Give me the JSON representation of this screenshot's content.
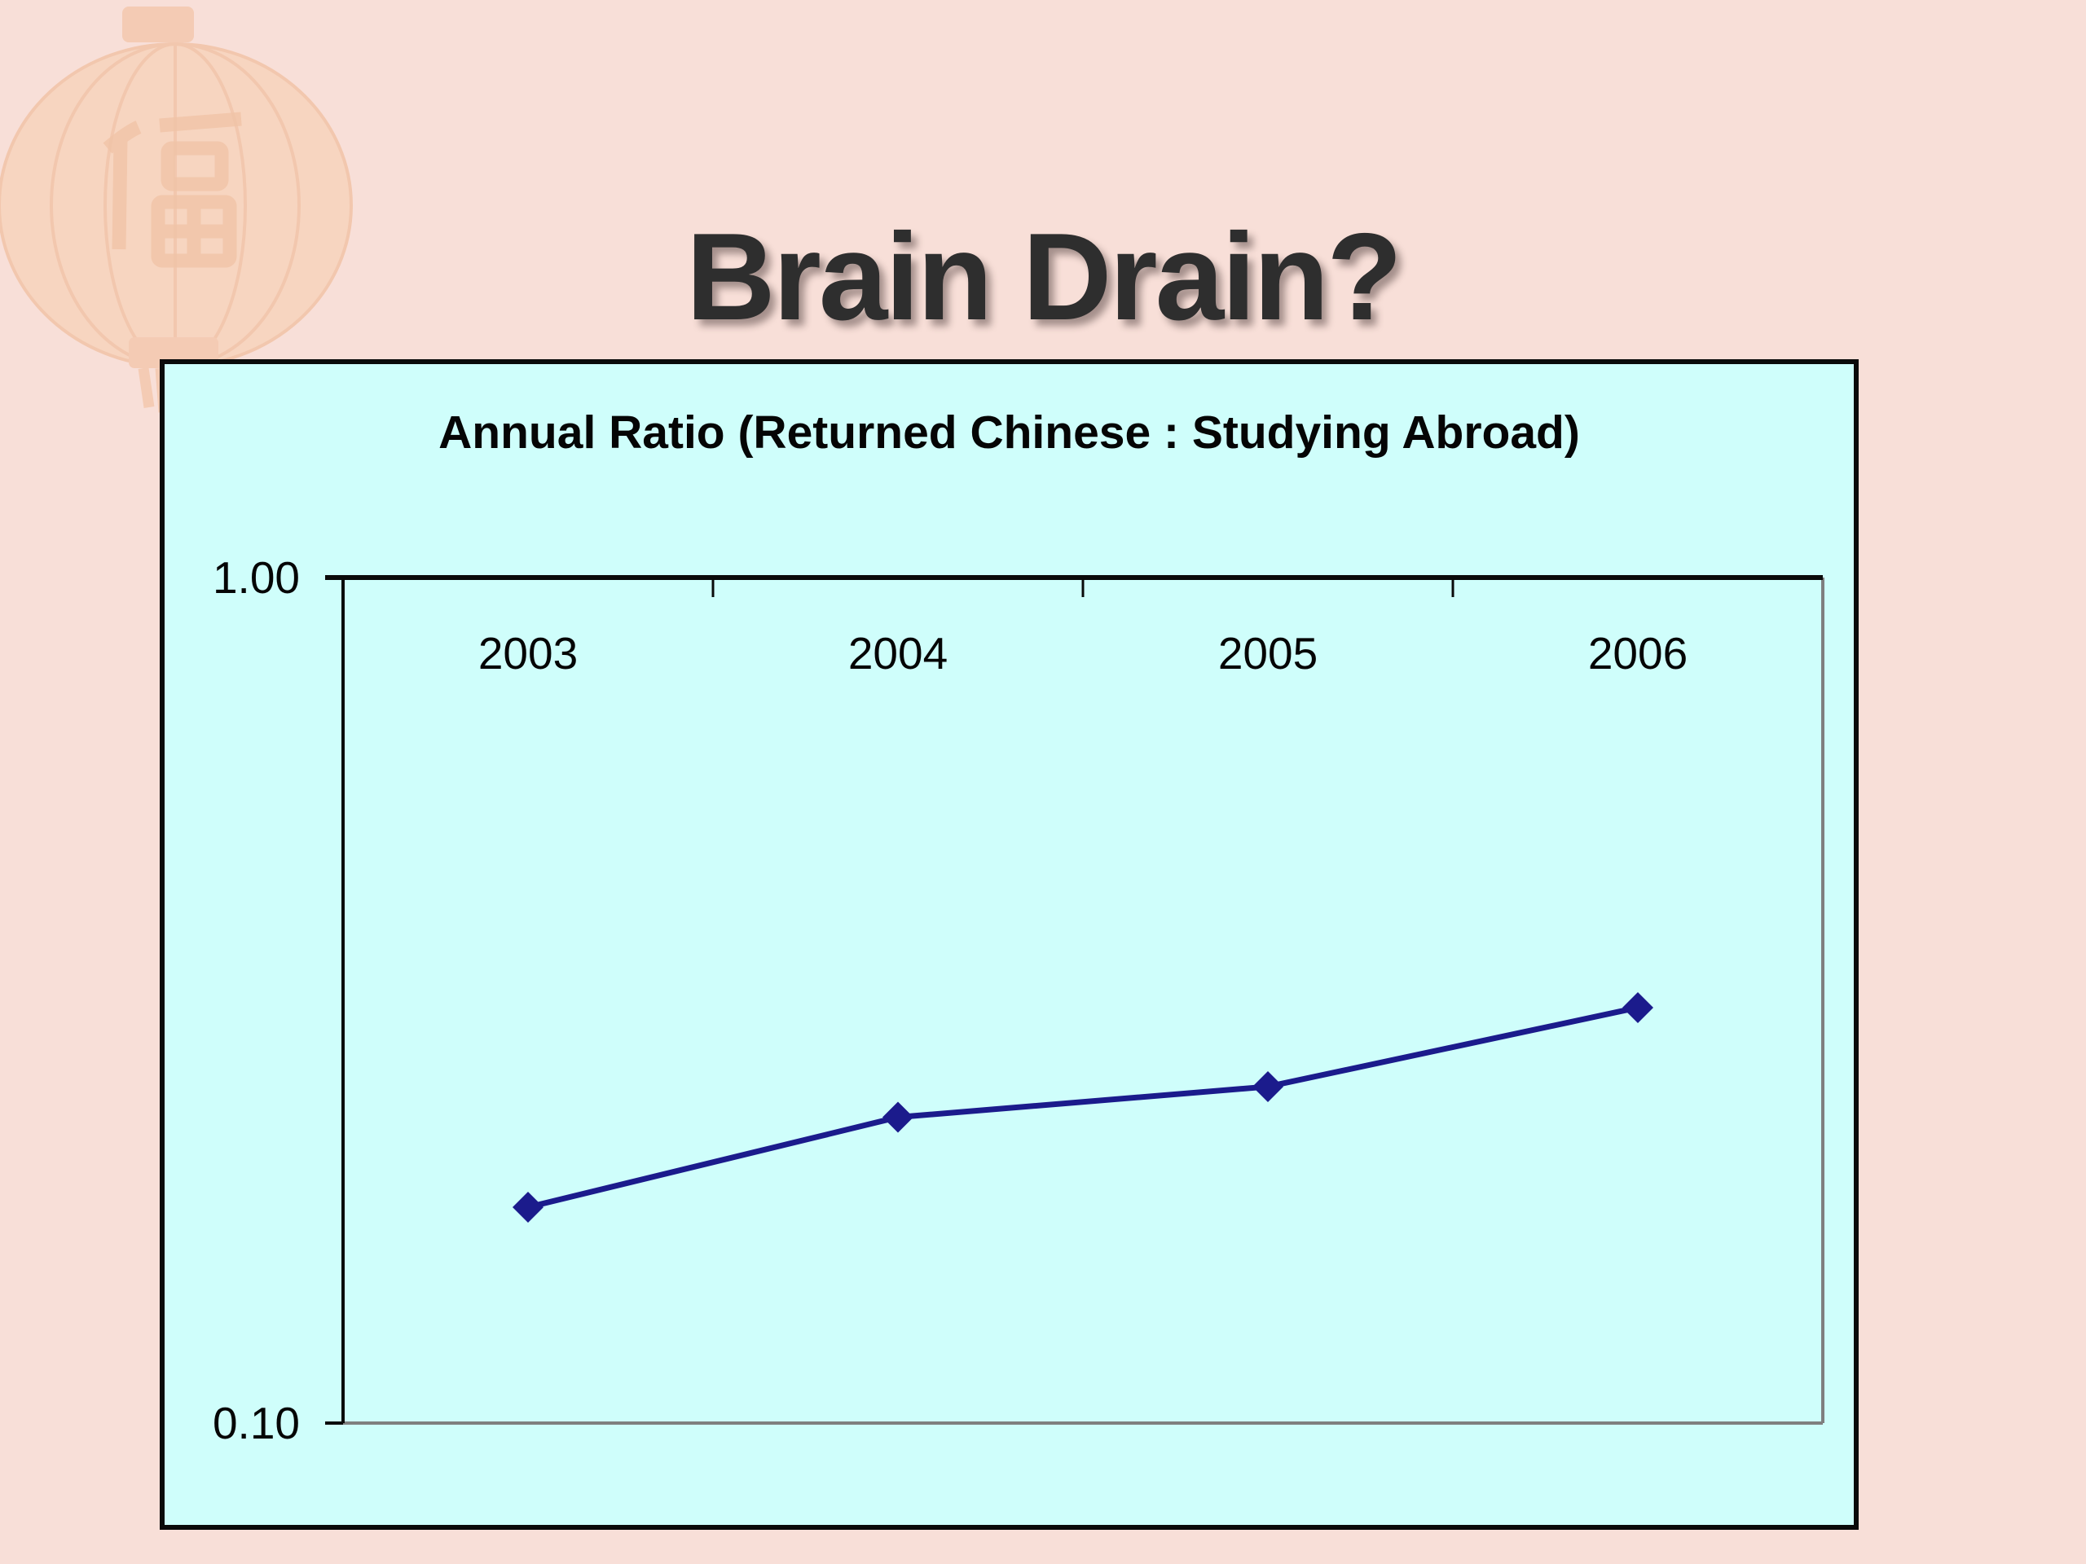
{
  "slide": {
    "title": "Brain Drain?"
  },
  "chart": {
    "title": "Annual Ratio (Returned Chinese : Studying Abroad)",
    "y_axis": {
      "top_label": "1.00",
      "bottom_label": "0.10"
    },
    "colors": {
      "page_background": "#F8DFD8",
      "plot_background": "#CFFEFB",
      "series_line": "#1B1B8C",
      "axis_black": "#0A0A0A",
      "axis_gray": "#7F7F7F",
      "title_text": "#2E2E2E",
      "lantern_body": "#F7C9A0",
      "lantern_accent": "#ECA875"
    }
  },
  "chart_data": {
    "type": "line",
    "title": "Annual Ratio (Returned Chinese : Studying Abroad)",
    "categories": [
      "2003",
      "2004",
      "2005",
      "2006"
    ],
    "values": [
      0.18,
      0.23,
      0.25,
      0.31
    ],
    "series": [
      {
        "name": "Annual Ratio (Returned Chinese : Studying Abroad)",
        "values": [
          0.18,
          0.23,
          0.25,
          0.31
        ]
      }
    ],
    "xlabel": "",
    "ylabel": "",
    "y_scale": "log",
    "ylim": [
      0.1,
      1.0
    ],
    "y_tick_labels": [
      "1.00",
      "0.10"
    ],
    "x_axis_position": "top",
    "marker": "diamond",
    "grid": "horizontal-decade-only",
    "legend": "none"
  },
  "decoration": {
    "lantern_icon": "chinese-lantern-watermark"
  }
}
